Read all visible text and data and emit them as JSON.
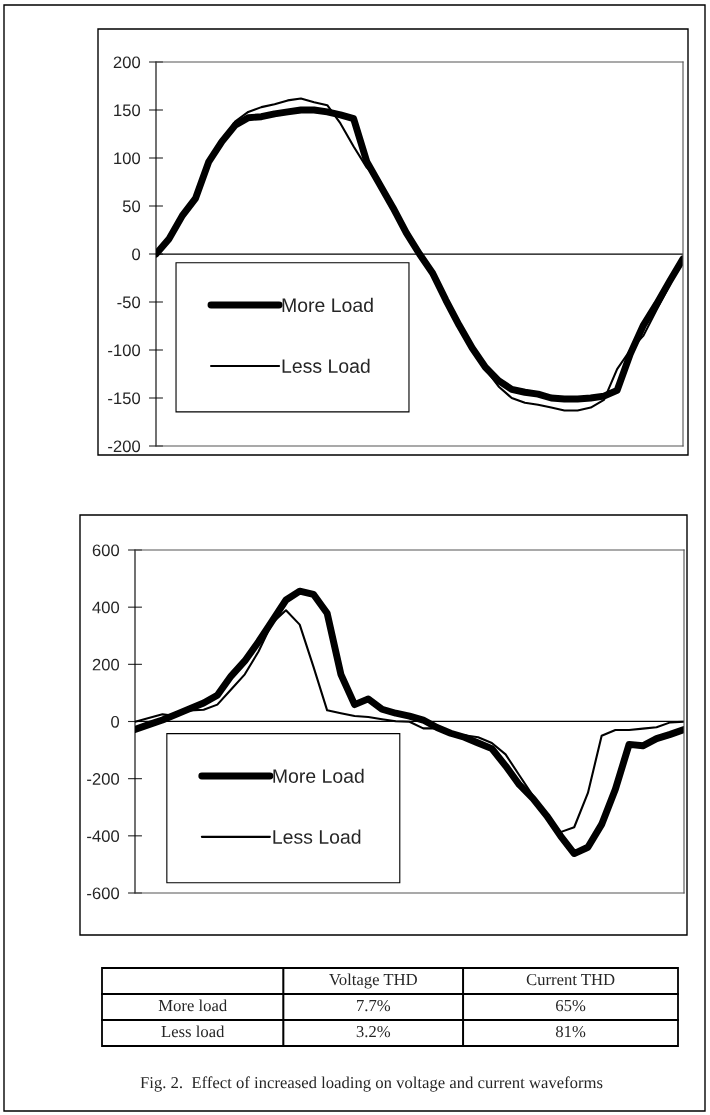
{
  "chart_data": [
    {
      "type": "line",
      "categories": [
        null,
        null,
        null,
        null,
        null,
        null,
        null,
        null,
        null,
        null,
        null,
        null,
        null,
        null,
        null,
        null,
        null,
        null,
        null,
        null,
        null,
        null,
        null,
        null,
        null,
        null,
        null,
        null,
        null,
        null,
        null,
        null,
        null,
        null,
        null,
        null,
        null,
        null,
        null,
        null,
        null
      ],
      "ylim": [
        -200,
        200
      ],
      "yticks": [
        -200,
        -150,
        -100,
        -50,
        0,
        50,
        100,
        150,
        200
      ],
      "tick_labels": "y",
      "ref_lines": [
        {
          "axis": "y",
          "value": 0
        }
      ],
      "grid": false,
      "legend": "bottom left",
      "marker": "none",
      "line_style": "solid",
      "series": [
        {
          "name": "More Load",
          "color": "#000000",
          "values": [
            0,
            16,
            40,
            58,
            96,
            117,
            134,
            142,
            143,
            146,
            148,
            150,
            150,
            148,
            145,
            141,
            96,
            72,
            48,
            22,
            0,
            -20,
            -48,
            -74,
            -98,
            -118,
            -132,
            -141,
            -144,
            -146,
            -150,
            -151,
            -151,
            -150,
            -148,
            -142,
            -104,
            -74,
            -52,
            -28,
            -5
          ]
        },
        {
          "name": "Less Load",
          "color": "#000000",
          "values": [
            0,
            16,
            40,
            58,
            96,
            118,
            138,
            148,
            153,
            156,
            160,
            162,
            158,
            155,
            136,
            112,
            90,
            76,
            48,
            22,
            0,
            -20,
            -48,
            -74,
            -98,
            -120,
            -138,
            -150,
            -155,
            -157,
            -160,
            -163,
            -163,
            -160,
            -152,
            -120,
            -100,
            -85,
            -58,
            -32,
            -5
          ]
        }
      ]
    },
    {
      "type": "line",
      "categories": [
        null,
        null,
        null,
        null,
        null,
        null,
        null,
        null,
        null,
        null,
        null,
        null,
        null,
        null,
        null,
        null,
        null,
        null,
        null,
        null,
        null,
        null,
        null,
        null,
        null,
        null,
        null,
        null,
        null,
        null,
        null,
        null,
        null,
        null,
        null,
        null,
        null,
        null,
        null,
        null,
        null
      ],
      "ylim": [
        -600,
        600
      ],
      "yticks": [
        -600,
        -400,
        -200,
        0,
        200,
        400,
        600
      ],
      "tick_labels": "y",
      "ref_lines": [
        {
          "axis": "y",
          "value": 0
        }
      ],
      "grid": false,
      "legend": "bottom left",
      "marker": "none",
      "line_style": "solid",
      "series": [
        {
          "name": "More Load",
          "color": "#000000",
          "values": [
            -28,
            -11,
            5,
            25,
            45,
            65,
            92,
            159,
            212,
            279,
            352,
            425,
            456,
            445,
            379,
            165,
            59,
            79,
            43,
            29,
            19,
            5,
            -21,
            -41,
            -55,
            -75,
            -95,
            -155,
            -221,
            -270,
            -330,
            -400,
            -462,
            -440,
            -360,
            -237,
            -80,
            -85,
            -60,
            -45,
            -28
          ]
        },
        {
          "name": "Less Load",
          "color": "#000000",
          "values": [
            -1,
            12,
            25,
            19,
            39,
            41,
            59,
            112,
            165,
            245,
            345,
            389,
            339,
            192,
            39,
            29,
            19,
            16,
            8,
            1,
            -1,
            -24,
            -24,
            -41,
            -48,
            -55,
            -75,
            -115,
            -188,
            -260,
            -340,
            -387,
            -370,
            -250,
            -50,
            -30,
            -30,
            -25,
            -20,
            -3,
            -1
          ]
        }
      ]
    },
    {
      "type": "other",
      "categories": [
        "Voltage THD",
        "Current THD"
      ],
      "y_categories": [
        "More load",
        "Less load"
      ],
      "cell_labels": [
        [
          "7.7%",
          "65%"
        ],
        [
          "3.2%",
          "81%"
        ]
      ],
      "annotations": [
        "Fig. 2.  Effect of increased loading on voltage and current waveforms"
      ]
    }
  ]
}
